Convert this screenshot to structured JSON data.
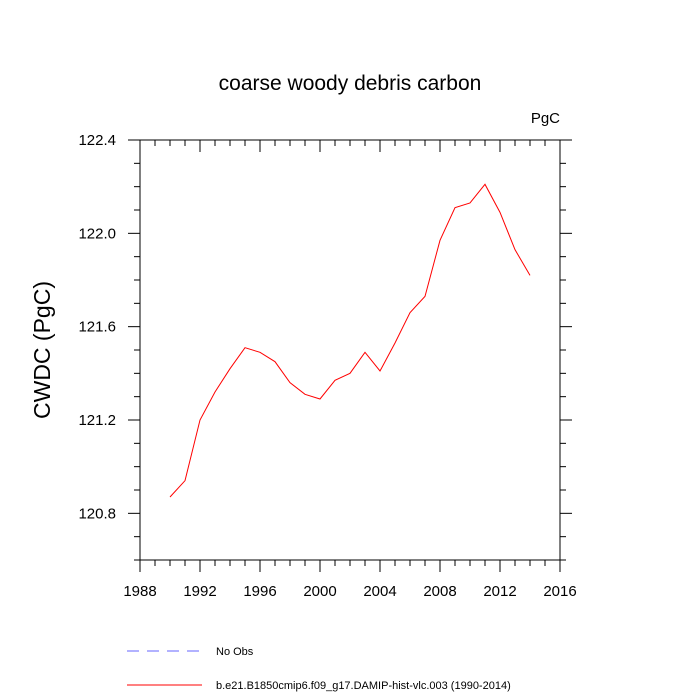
{
  "chart_data": {
    "type": "line",
    "title": "coarse woody debris carbon",
    "unit_label": "PgC",
    "xlabel": "",
    "ylabel": "CWDC  (PgC)",
    "xlim": [
      1988,
      2016
    ],
    "ylim": [
      120.6,
      122.4
    ],
    "xticks": [
      1988,
      1992,
      1996,
      2000,
      2004,
      2008,
      2012,
      2016
    ],
    "yticks": [
      120.8,
      121.2,
      121.6,
      122.0,
      122.4
    ],
    "ytick_labels": [
      "120.8",
      "121.2",
      "121.6",
      "122.0",
      "122.4"
    ],
    "grid": false,
    "legend_position": "bottom",
    "series": [
      {
        "name": "No Obs",
        "color": "#6666ff",
        "dash": "dashed",
        "x": [],
        "y": []
      },
      {
        "name": "b.e21.B1850cmip6.f09_g17.DAMIP-hist-vlc.003 (1990-2014)",
        "color": "#ff0000",
        "dash": "solid",
        "x": [
          1990,
          1991,
          1992,
          1993,
          1994,
          1995,
          1996,
          1997,
          1998,
          1999,
          2000,
          2001,
          2002,
          2003,
          2004,
          2005,
          2006,
          2007,
          2008,
          2009,
          2010,
          2011,
          2012,
          2013,
          2014
        ],
        "y": [
          120.87,
          120.94,
          121.2,
          121.32,
          121.42,
          121.51,
          121.49,
          121.45,
          121.36,
          121.31,
          121.29,
          121.37,
          121.4,
          121.49,
          121.41,
          121.53,
          121.66,
          121.73,
          121.97,
          122.11,
          122.13,
          122.21,
          122.09,
          121.93,
          121.82
        ]
      }
    ]
  }
}
